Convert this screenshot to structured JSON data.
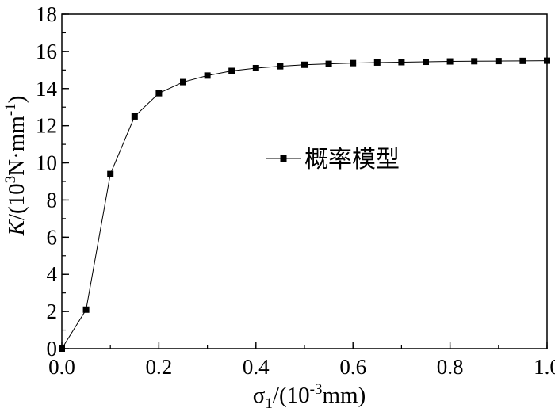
{
  "chart_data": {
    "type": "line",
    "x_axis": {
      "symbol": "σ",
      "subscript": "1",
      "unit_open": "/(10",
      "unit_exp": "-3",
      "unit_close": "mm)",
      "range": [
        0,
        1.0
      ],
      "ticks": [
        0,
        0.2,
        0.4,
        0.6,
        0.8,
        1.0
      ],
      "tick_labels": [
        "0.0",
        "0.2",
        "0.4",
        "0.6",
        "0.8",
        "1.0"
      ],
      "minor_step": 0.1
    },
    "y_axis": {
      "symbol": "K",
      "unit_open": "/(10",
      "unit_exp1": "3",
      "unit_mid": "N·mm",
      "unit_exp2": "-1",
      "unit_close": ")",
      "range": [
        0,
        18
      ],
      "ticks": [
        0,
        2,
        4,
        6,
        8,
        10,
        12,
        14,
        16,
        18
      ],
      "tick_labels": [
        "0",
        "2",
        "4",
        "6",
        "8",
        "10",
        "12",
        "14",
        "16",
        "18"
      ],
      "minor_step": 1
    },
    "grid": false,
    "legend_position": "right-middle",
    "series": [
      {
        "name": "概率模型",
        "color": "#000000",
        "marker": "square",
        "x": [
          0,
          0.05,
          0.1,
          0.15,
          0.2,
          0.25,
          0.3,
          0.35,
          0.4,
          0.45,
          0.5,
          0.55,
          0.6,
          0.65,
          0.7,
          0.75,
          0.8,
          0.85,
          0.9,
          0.95,
          1.0
        ],
        "y": [
          0,
          2.1,
          9.4,
          12.5,
          13.75,
          14.35,
          14.7,
          14.95,
          15.1,
          15.2,
          15.28,
          15.33,
          15.37,
          15.4,
          15.42,
          15.44,
          15.46,
          15.47,
          15.48,
          15.49,
          15.5
        ]
      }
    ]
  }
}
